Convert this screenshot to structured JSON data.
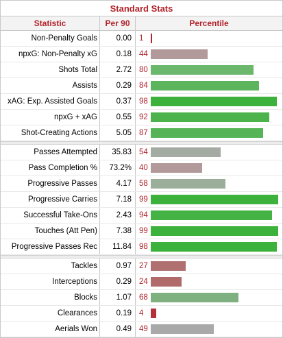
{
  "title": "Standard Stats",
  "headers": {
    "statistic": "Statistic",
    "per90": "Per 90",
    "percentile": "Percentile"
  },
  "colors": {
    "title_red": "#b3222a",
    "green": "#3cb13c",
    "light_green": "#6bb76b",
    "sage": "#7fb07f",
    "grey_green": "#9aa89a",
    "grey": "#a9a9a9",
    "mauve": "#b39a9a",
    "red_brown": "#b07070",
    "red": "#b3222a"
  },
  "groups": [
    [
      {
        "stat": "Non-Penalty Goals",
        "per90": "0.00",
        "pct": "1",
        "p": 1,
        "color": "#b3222a"
      },
      {
        "stat": "npxG: Non-Penalty xG",
        "per90": "0.18",
        "pct": "44",
        "p": 44,
        "color": "#b39a9a"
      },
      {
        "stat": "Shots Total",
        "per90": "2.72",
        "pct": "80",
        "p": 80,
        "color": "#6bb76b"
      },
      {
        "stat": "Assists",
        "per90": "0.29",
        "pct": "84",
        "p": 84,
        "color": "#5cb55c"
      },
      {
        "stat": "xAG: Exp. Assisted Goals",
        "per90": "0.37",
        "pct": "98",
        "p": 98,
        "color": "#3cb13c"
      },
      {
        "stat": "npxG + xAG",
        "per90": "0.55",
        "pct": "92",
        "p": 92,
        "color": "#4cb34c"
      },
      {
        "stat": "Shot-Creating Actions",
        "per90": "5.05",
        "pct": "87",
        "p": 87,
        "color": "#55b455"
      }
    ],
    [
      {
        "stat": "Passes Attempted",
        "per90": "35.83",
        "pct": "54",
        "p": 54,
        "color": "#a3aba3"
      },
      {
        "stat": "Pass Completion %",
        "per90": "73.2%",
        "pct": "40",
        "p": 40,
        "color": "#b39a9a"
      },
      {
        "stat": "Progressive Passes",
        "per90": "4.17",
        "pct": "58",
        "p": 58,
        "color": "#9aae9a"
      },
      {
        "stat": "Progressive Carries",
        "per90": "7.18",
        "pct": "99",
        "p": 99,
        "color": "#3cb13c"
      },
      {
        "stat": "Successful Take-Ons",
        "per90": "2.43",
        "pct": "94",
        "p": 94,
        "color": "#45b245"
      },
      {
        "stat": "Touches (Att Pen)",
        "per90": "7.38",
        "pct": "99",
        "p": 99,
        "color": "#3cb13c"
      },
      {
        "stat": "Progressive Passes Rec",
        "per90": "11.84",
        "pct": "98",
        "p": 98,
        "color": "#3cb13c"
      }
    ],
    [
      {
        "stat": "Tackles",
        "per90": "0.97",
        "pct": "27",
        "p": 27,
        "color": "#b07070"
      },
      {
        "stat": "Interceptions",
        "per90": "0.29",
        "pct": "24",
        "p": 24,
        "color": "#b06a6a"
      },
      {
        "stat": "Blocks",
        "per90": "1.07",
        "pct": "68",
        "p": 68,
        "color": "#7fb07f"
      },
      {
        "stat": "Clearances",
        "per90": "0.19",
        "pct": "4",
        "p": 4,
        "color": "#b3323a"
      },
      {
        "stat": "Aerials Won",
        "per90": "0.49",
        "pct": "49",
        "p": 49,
        "color": "#a9a9a9"
      }
    ]
  ]
}
